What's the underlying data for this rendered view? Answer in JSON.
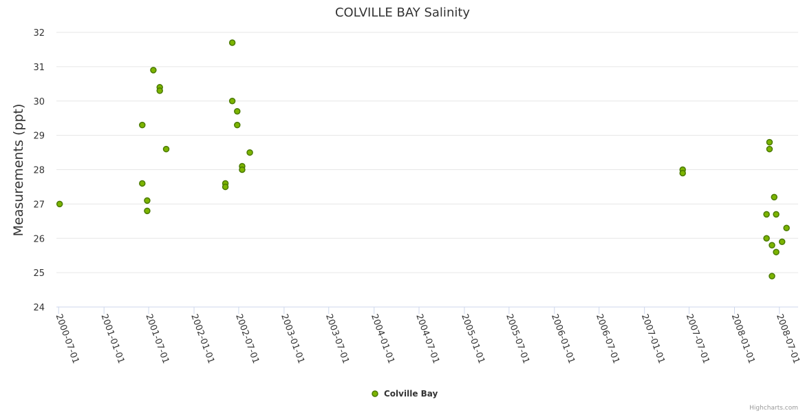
{
  "chart_data": {
    "type": "scatter",
    "title": "COLVILLE BAY Salinity",
    "ylabel": "Measurements (ppt)",
    "xlabel": "",
    "ylim": [
      24,
      32
    ],
    "yticks": [
      "24",
      "25",
      "26",
      "27",
      "28",
      "29",
      "30",
      "31",
      "32"
    ],
    "x_tick_labels": [
      "2000-07-01",
      "2001-01-01",
      "2001-07-01",
      "2002-01-01",
      "2002-07-01",
      "2003-01-01",
      "2003-07-01",
      "2004-01-01",
      "2004-07-01",
      "2005-01-01",
      "2005-07-01",
      "2006-01-01",
      "2006-07-01",
      "2007-01-01",
      "2007-07-01",
      "2008-01-01",
      "2008-07-01"
    ],
    "xlim": [
      "2000-06-22",
      "2008-09-15"
    ],
    "legend_position": "bottom-center",
    "grid": true,
    "series": [
      {
        "name": "Colville Bay",
        "color": "#7cb400",
        "edge_color": "#4a7a00",
        "points": [
          {
            "x": "2000-07-05",
            "y": 27.0
          },
          {
            "x": "2001-06-05",
            "y": 29.3
          },
          {
            "x": "2001-06-05",
            "y": 27.6
          },
          {
            "x": "2001-06-25",
            "y": 27.1
          },
          {
            "x": "2001-06-25",
            "y": 26.8
          },
          {
            "x": "2001-07-20",
            "y": 30.9
          },
          {
            "x": "2001-08-15",
            "y": 30.4
          },
          {
            "x": "2001-08-15",
            "y": 30.3
          },
          {
            "x": "2001-09-10",
            "y": 28.6
          },
          {
            "x": "2002-05-08",
            "y": 27.6
          },
          {
            "x": "2002-05-08",
            "y": 27.5
          },
          {
            "x": "2002-06-05",
            "y": 31.7
          },
          {
            "x": "2002-06-05",
            "y": 30.0
          },
          {
            "x": "2002-06-25",
            "y": 29.7
          },
          {
            "x": "2002-06-25",
            "y": 29.3
          },
          {
            "x": "2002-07-15",
            "y": 28.1
          },
          {
            "x": "2002-07-15",
            "y": 28.0
          },
          {
            "x": "2002-08-15",
            "y": 28.5
          },
          {
            "x": "2007-06-05",
            "y": 28.0
          },
          {
            "x": "2007-06-05",
            "y": 27.9
          },
          {
            "x": "2008-05-10",
            "y": 26.7
          },
          {
            "x": "2008-05-10",
            "y": 26.0
          },
          {
            "x": "2008-05-22",
            "y": 28.8
          },
          {
            "x": "2008-05-22",
            "y": 28.6
          },
          {
            "x": "2008-06-01",
            "y": 25.8
          },
          {
            "x": "2008-06-01",
            "y": 24.9
          },
          {
            "x": "2008-06-10",
            "y": 27.2
          },
          {
            "x": "2008-06-18",
            "y": 26.7
          },
          {
            "x": "2008-06-18",
            "y": 25.6
          },
          {
            "x": "2008-07-12",
            "y": 25.9
          },
          {
            "x": "2008-07-30",
            "y": 26.3
          }
        ]
      }
    ]
  },
  "credit": "Highcharts.com"
}
